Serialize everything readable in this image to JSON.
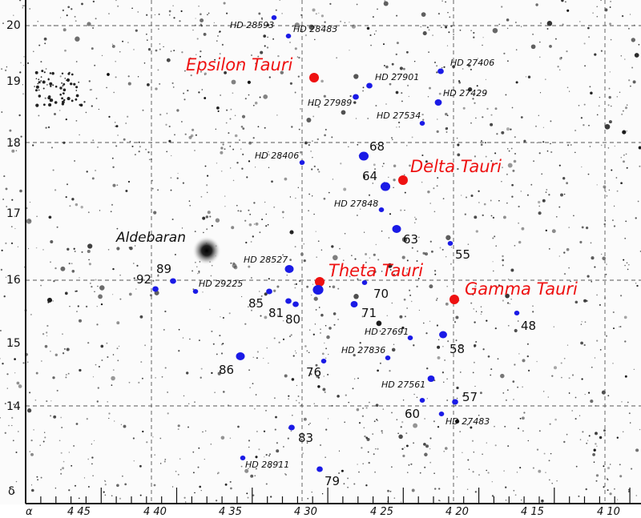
{
  "colors": {
    "named_star": "#ee1111",
    "hyades_member": "#1a1ae6",
    "field_star": "#111111"
  },
  "axes": {
    "dec_symbol": "δ",
    "ra_symbol": "α",
    "ra_ticks": [
      "4 45",
      "4 40",
      "4 35",
      "4 30",
      "4 25",
      "4 20",
      "4 15",
      "4 10"
    ],
    "dec_ticks": [
      "20",
      "19",
      "18",
      "17",
      "16",
      "15",
      "14"
    ]
  },
  "bright_star": {
    "label": "Aldebaran"
  },
  "named_stars": [
    "Epsilon Tauri",
    "Delta Tauri",
    "Theta Tauri",
    "Gamma Tauri"
  ],
  "members": [
    "HD 28593",
    "HD 28483",
    "HD 27406",
    "HD 27901",
    "HD 27989",
    "HD 27429",
    "HD 27534",
    "HD 28406",
    "68",
    "64",
    "HD 27848",
    "63",
    "55",
    "HD 28527",
    "92",
    "89",
    "HD 29225",
    "85",
    "81",
    "80",
    "70",
    "71",
    "48",
    "HD 27691",
    "58",
    "86",
    "HD 27836",
    "76",
    "HD 27561",
    "57",
    "60",
    "HD 27483",
    "83",
    "HD 28911",
    "79",
    ""
  ]
}
